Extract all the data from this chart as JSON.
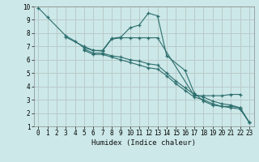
{
  "xlabel": "Humidex (Indice chaleur)",
  "xlim": [
    -0.5,
    23.5
  ],
  "ylim": [
    1,
    10
  ],
  "xticks": [
    0,
    1,
    2,
    3,
    4,
    5,
    6,
    7,
    8,
    9,
    10,
    11,
    12,
    13,
    14,
    15,
    16,
    17,
    18,
    19,
    20,
    21,
    22,
    23
  ],
  "yticks": [
    1,
    2,
    3,
    4,
    5,
    6,
    7,
    8,
    9,
    10
  ],
  "bg_color": "#cce8e8",
  "grid_color": "#b0d4d4",
  "grid_color2": "#d8a0a0",
  "line_color": "#2d6e6e",
  "series1_x": [
    0,
    1,
    3,
    4,
    5,
    6,
    7,
    8,
    9,
    10,
    11,
    12,
    13,
    14,
    16,
    17,
    18,
    19,
    20,
    21,
    22,
    23
  ],
  "series1_y": [
    9.9,
    9.2,
    7.8,
    7.4,
    6.9,
    6.7,
    6.7,
    7.6,
    7.7,
    8.4,
    8.6,
    9.5,
    9.3,
    6.3,
    5.2,
    3.5,
    2.9,
    2.6,
    2.5,
    2.5,
    2.4,
    1.3
  ],
  "series2_x": [
    3,
    5,
    6,
    7,
    8,
    9,
    10,
    11,
    12,
    13,
    17,
    18,
    19,
    20,
    21,
    22
  ],
  "series2_y": [
    7.7,
    7.0,
    6.7,
    6.65,
    7.55,
    7.65,
    7.65,
    7.65,
    7.65,
    7.65,
    3.3,
    3.3,
    3.3,
    3.3,
    3.4,
    3.4
  ],
  "series3_x": [
    5,
    6,
    7,
    8,
    9,
    10,
    11,
    12,
    13,
    14,
    15,
    16,
    17,
    18,
    19,
    20,
    21,
    22,
    23
  ],
  "series3_y": [
    6.8,
    6.5,
    6.5,
    6.3,
    6.2,
    6.0,
    5.9,
    5.7,
    5.6,
    5.0,
    4.4,
    3.9,
    3.4,
    3.2,
    2.9,
    2.7,
    2.6,
    2.4,
    1.3
  ],
  "series4_x": [
    5,
    6,
    7,
    8,
    9,
    10,
    11,
    12,
    13,
    14,
    15,
    16,
    17,
    18,
    19,
    20,
    21,
    22,
    23
  ],
  "series4_y": [
    6.7,
    6.4,
    6.4,
    6.2,
    6.0,
    5.8,
    5.6,
    5.4,
    5.3,
    4.8,
    4.2,
    3.7,
    3.2,
    3.0,
    2.7,
    2.5,
    2.4,
    2.3,
    1.3
  ]
}
